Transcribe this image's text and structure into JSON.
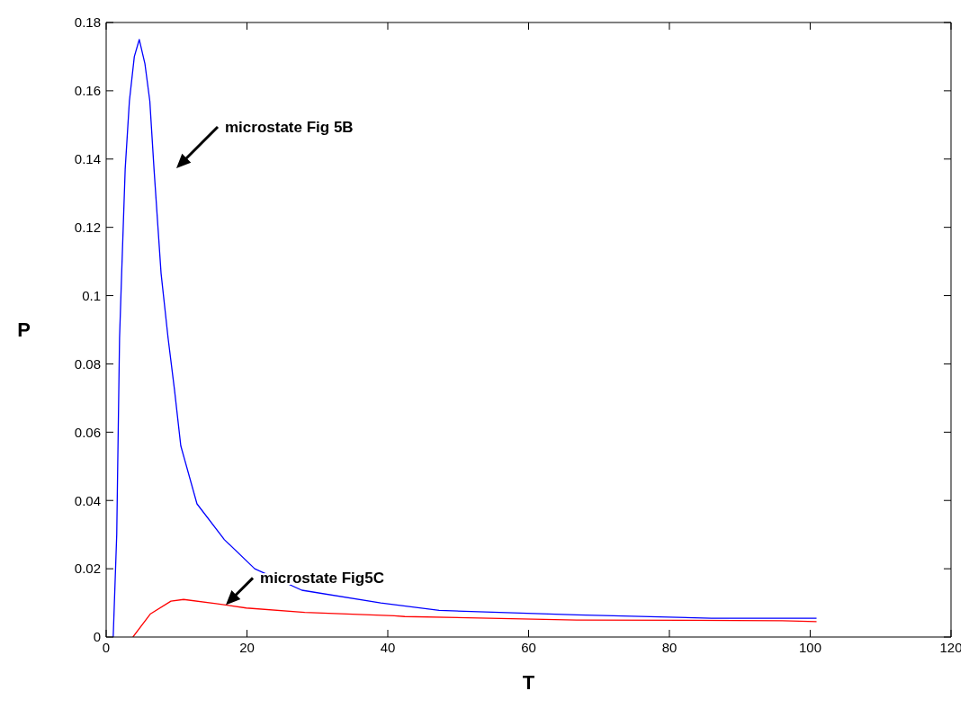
{
  "chart_data": {
    "type": "line",
    "xlabel": "T",
    "ylabel": "P",
    "xlim": [
      0,
      120
    ],
    "xticks": [
      0,
      20,
      40,
      60,
      80,
      100,
      120
    ],
    "ylim": [
      0,
      0.18
    ],
    "yticks": [
      0,
      0.02,
      0.04,
      0.06,
      0.08,
      0.1,
      0.12,
      0.14,
      0.16,
      0.18
    ],
    "grid": false,
    "marker": "none",
    "line_style": "solid",
    "annotations": [
      "microstate Fig 5B",
      {
        "text": "microstate Fig5C",
        "x": 17,
        "y": 0.0094
      }
    ],
    "series": [
      {
        "color": "#0000ff",
        "x": [
          1,
          1.5,
          1.9,
          2.2,
          2.7,
          3.3,
          4,
          4.7,
          5.5,
          6.2,
          6.8,
          7.8,
          8.8,
          9.7,
          10.6,
          12.9,
          16.8,
          21.1,
          27.8,
          39,
          47.3,
          66.8,
          86,
          100.9
        ],
        "values": [
          0,
          0.03,
          0.0875,
          0.1065,
          0.137,
          0.157,
          0.17,
          0.175,
          0.168,
          0.157,
          0.137,
          0.1065,
          0.0875,
          0.0725,
          0.056,
          0.039,
          0.0285,
          0.02,
          0.0137,
          0.01,
          0.0078,
          0.0065,
          0.0055,
          0.0055
        ]
      },
      {
        "color": "#ff0000",
        "x": [
          3.8,
          6.3,
          9.2,
          11,
          15.6,
          19.9,
          28.2,
          40.9,
          42.4,
          66.8,
          96,
          100.9
        ],
        "values": [
          0,
          0.0068,
          0.0105,
          0.011,
          0.0098,
          0.0085,
          0.0072,
          0.0062,
          0.006,
          0.005,
          0.0048,
          0.0045
        ]
      }
    ]
  }
}
